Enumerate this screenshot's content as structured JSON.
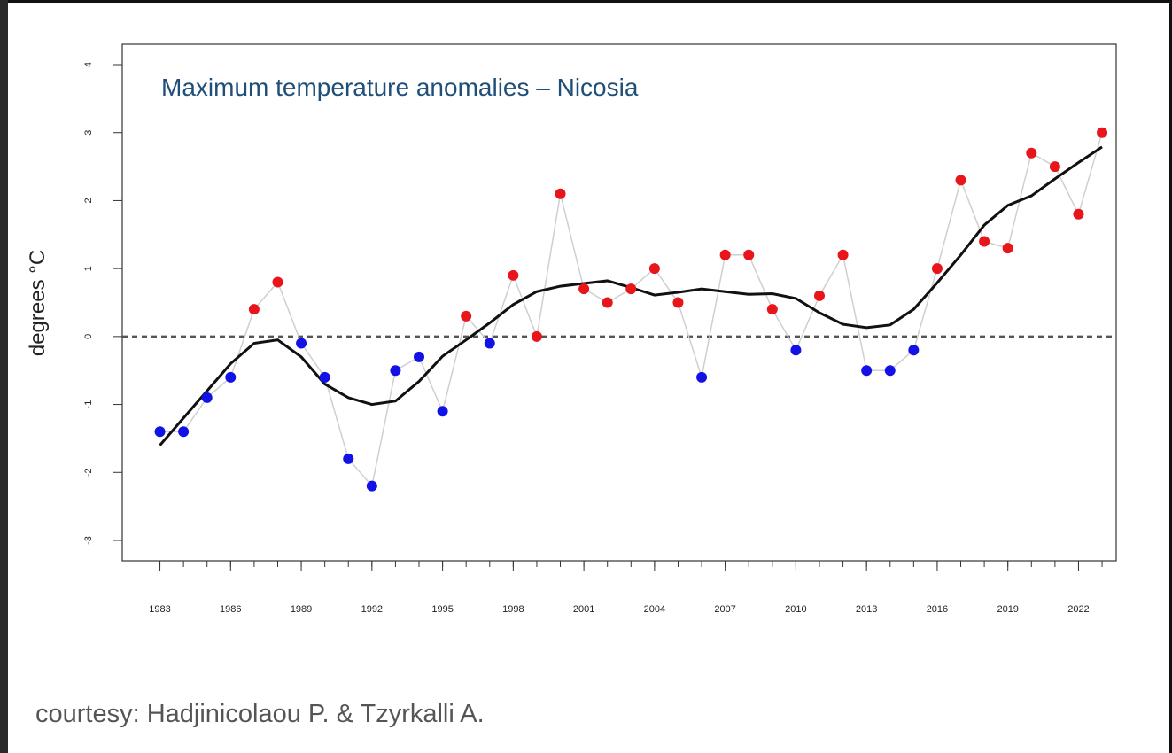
{
  "chart_data": {
    "type": "scatter",
    "title": "Maximum temperature anomalies – Nicosia",
    "ylabel": "degrees °C",
    "x": [
      1983,
      1984,
      1985,
      1986,
      1987,
      1988,
      1989,
      1990,
      1991,
      1992,
      1993,
      1994,
      1995,
      1996,
      1997,
      1998,
      1999,
      2000,
      2001,
      2002,
      2003,
      2004,
      2005,
      2006,
      2007,
      2008,
      2009,
      2010,
      2011,
      2012,
      2013,
      2014,
      2015,
      2016,
      2017,
      2018,
      2019,
      2020,
      2021,
      2022,
      2023
    ],
    "series": [
      {
        "values": [
          -1.4,
          -1.4,
          -0.9,
          -0.6,
          0.4,
          0.8,
          -0.1,
          -0.6,
          -1.8,
          -2.2,
          -0.5,
          -0.3,
          -1.1,
          0.3,
          -0.1,
          0.9,
          0.0,
          2.1,
          0.7,
          0.5,
          0.7,
          1.0,
          0.5,
          -0.6,
          1.2,
          1.2,
          0.4,
          -0.2,
          0.6,
          1.2,
          -0.5,
          -0.5,
          -0.2,
          1.0,
          2.3,
          1.4,
          1.3,
          2.7,
          2.5,
          1.8,
          3.0
        ],
        "above_color": "#e8151b",
        "below_color": "#1212e6",
        "line_color": "#cfcfcf"
      },
      {
        "values": [
          -1.6,
          -1.2,
          -0.8,
          -0.4,
          -0.1,
          -0.05,
          -0.3,
          -0.7,
          -0.9,
          -1.0,
          -0.95,
          -0.66,
          -0.29,
          -0.05,
          0.2,
          0.47,
          0.66,
          0.74,
          0.78,
          0.82,
          0.72,
          0.61,
          0.65,
          0.7,
          0.66,
          0.62,
          0.63,
          0.56,
          0.35,
          0.18,
          0.13,
          0.17,
          0.4,
          0.79,
          1.2,
          1.64,
          1.93,
          2.07,
          2.32,
          2.56,
          2.79
        ],
        "color": "#111111"
      }
    ],
    "reference_line": 0,
    "xlim": [
      1981.4,
      2023.6
    ],
    "xticks": [
      1983,
      1986,
      1989,
      1992,
      1995,
      1998,
      2001,
      2004,
      2007,
      2010,
      2013,
      2016,
      2019,
      2022
    ],
    "ylim": [
      -3.3,
      4.3
    ],
    "yticks": [
      -3,
      -2,
      -1,
      0,
      1,
      2,
      3,
      4
    ]
  },
  "caption": "courtesy: Hadjinicolaou P. & Tzyrkalli A."
}
